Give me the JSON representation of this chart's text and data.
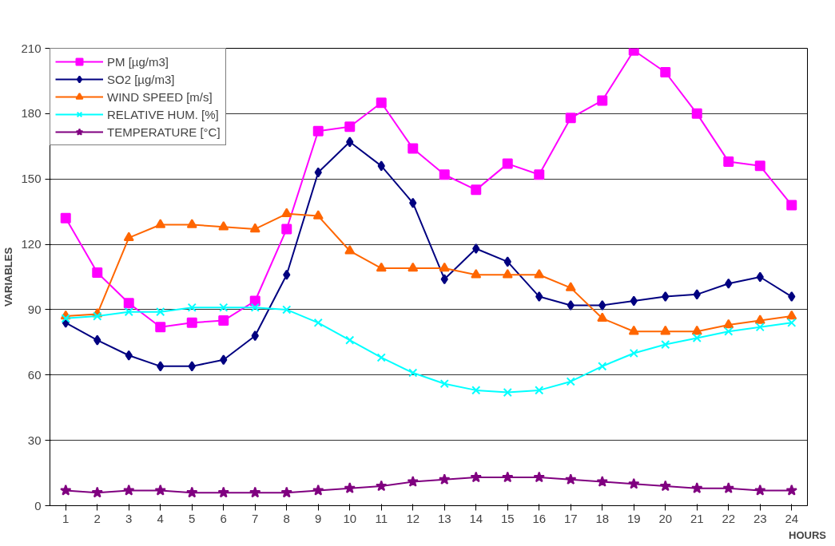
{
  "chart_data": {
    "type": "line",
    "xlabel": "HOURS",
    "ylabel": "VARIABLES",
    "x": [
      1,
      2,
      3,
      4,
      5,
      6,
      7,
      8,
      9,
      10,
      11,
      12,
      13,
      14,
      15,
      16,
      17,
      18,
      19,
      20,
      21,
      22,
      23,
      24
    ],
    "xlim": [
      0.5,
      24.5
    ],
    "xticks": [
      1,
      2,
      3,
      4,
      5,
      6,
      7,
      8,
      9,
      10,
      11,
      12,
      13,
      14,
      15,
      16,
      17,
      18,
      19,
      20,
      21,
      22,
      23,
      24
    ],
    "ylim": [
      0,
      210
    ],
    "yticks": [
      0,
      30,
      60,
      90,
      120,
      150,
      180,
      210
    ],
    "grid": "y",
    "legend": "top left",
    "line_style": "solid",
    "series": [
      {
        "name": "PM [µg/m3]",
        "color": "#ff00ff",
        "marker": "square",
        "values": [
          132,
          107,
          93,
          82,
          84,
          85,
          94,
          127,
          172,
          174,
          185,
          164,
          152,
          145,
          157,
          152,
          178,
          186,
          209,
          199,
          180,
          158,
          156,
          138
        ]
      },
      {
        "name": "SO2 [µg/m3]",
        "color": "#000080",
        "marker": "diamond",
        "values": [
          84,
          76,
          69,
          64,
          64,
          67,
          78,
          106,
          153,
          167,
          156,
          139,
          104,
          118,
          112,
          96,
          92,
          92,
          94,
          96,
          97,
          102,
          105,
          96
        ]
      },
      {
        "name": "WIND SPEED [m/s]",
        "color": "#ff6600",
        "marker": "triangle",
        "values": [
          87,
          88,
          123,
          129,
          129,
          128,
          127,
          134,
          133,
          117,
          109,
          109,
          109,
          106,
          106,
          106,
          100,
          86,
          80,
          80,
          80,
          83,
          85,
          87
        ]
      },
      {
        "name": "RELATIVE HUM. [%]",
        "color": "#00ffff",
        "marker": "cross",
        "values": [
          86,
          87,
          89,
          89,
          91,
          91,
          91,
          90,
          84,
          76,
          68,
          61,
          56,
          53,
          52,
          53,
          57,
          64,
          70,
          74,
          77,
          80,
          82,
          84
        ]
      },
      {
        "name": "TEMPERATURE [°C]",
        "color": "#800080",
        "marker": "star",
        "values": [
          7,
          6,
          7,
          7,
          6,
          6,
          6,
          6,
          7,
          8,
          9,
          11,
          12,
          13,
          13,
          13,
          12,
          11,
          10,
          9,
          8,
          8,
          7,
          7
        ]
      }
    ]
  }
}
